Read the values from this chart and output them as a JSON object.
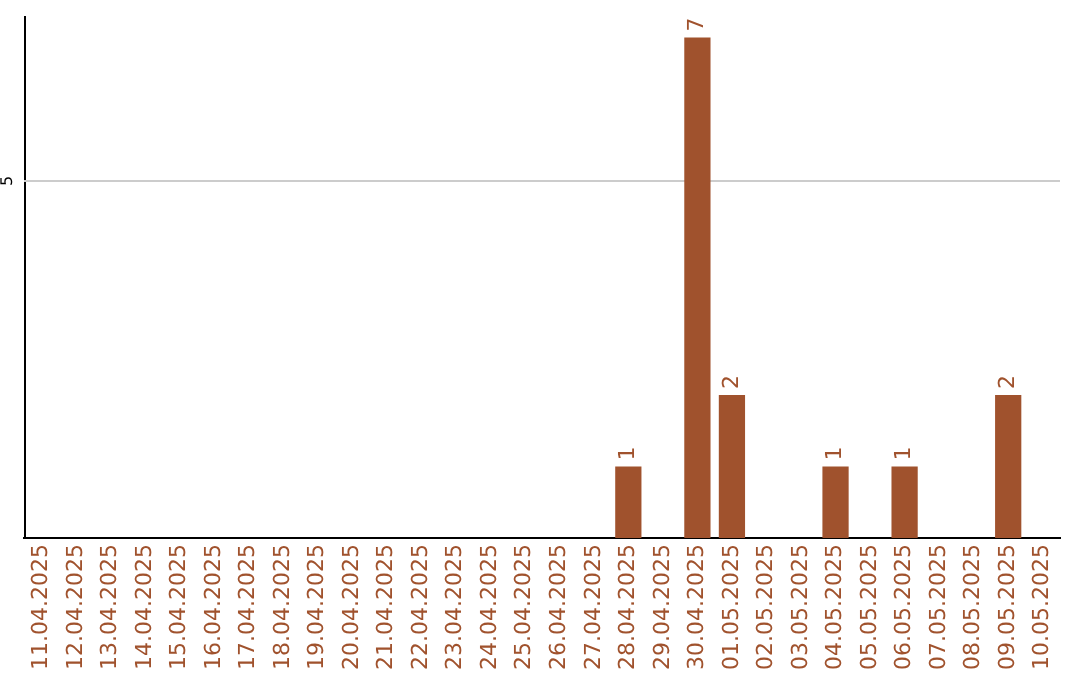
{
  "chart_data": {
    "type": "bar",
    "categories": [
      "11.04.2025",
      "12.04.2025",
      "13.04.2025",
      "14.04.2025",
      "15.04.2025",
      "16.04.2025",
      "17.04.2025",
      "18.04.2025",
      "19.04.2025",
      "20.04.2025",
      "21.04.2025",
      "22.04.2025",
      "23.04.2025",
      "24.04.2025",
      "25.04.2025",
      "26.04.2025",
      "27.04.2025",
      "28.04.2025",
      "29.04.2025",
      "30.04.2025",
      "01.05.2025",
      "02.05.2025",
      "03.05.2025",
      "04.05.2025",
      "05.05.2025",
      "06.05.2025",
      "07.05.2025",
      "08.05.2025",
      "09.05.2025",
      "10.05.2025"
    ],
    "values": [
      null,
      null,
      null,
      null,
      null,
      null,
      null,
      null,
      null,
      null,
      null,
      null,
      null,
      null,
      null,
      null,
      null,
      1,
      null,
      7,
      2,
      null,
      null,
      1,
      null,
      1,
      null,
      null,
      2,
      null
    ],
    "color": "#a0522d",
    "ylim": [
      0,
      7.3
    ],
    "data_labels": true,
    "ref_lines": [
      {
        "axis": "y",
        "value": 5,
        "label": "5",
        "color": "#cccccc"
      }
    ]
  }
}
